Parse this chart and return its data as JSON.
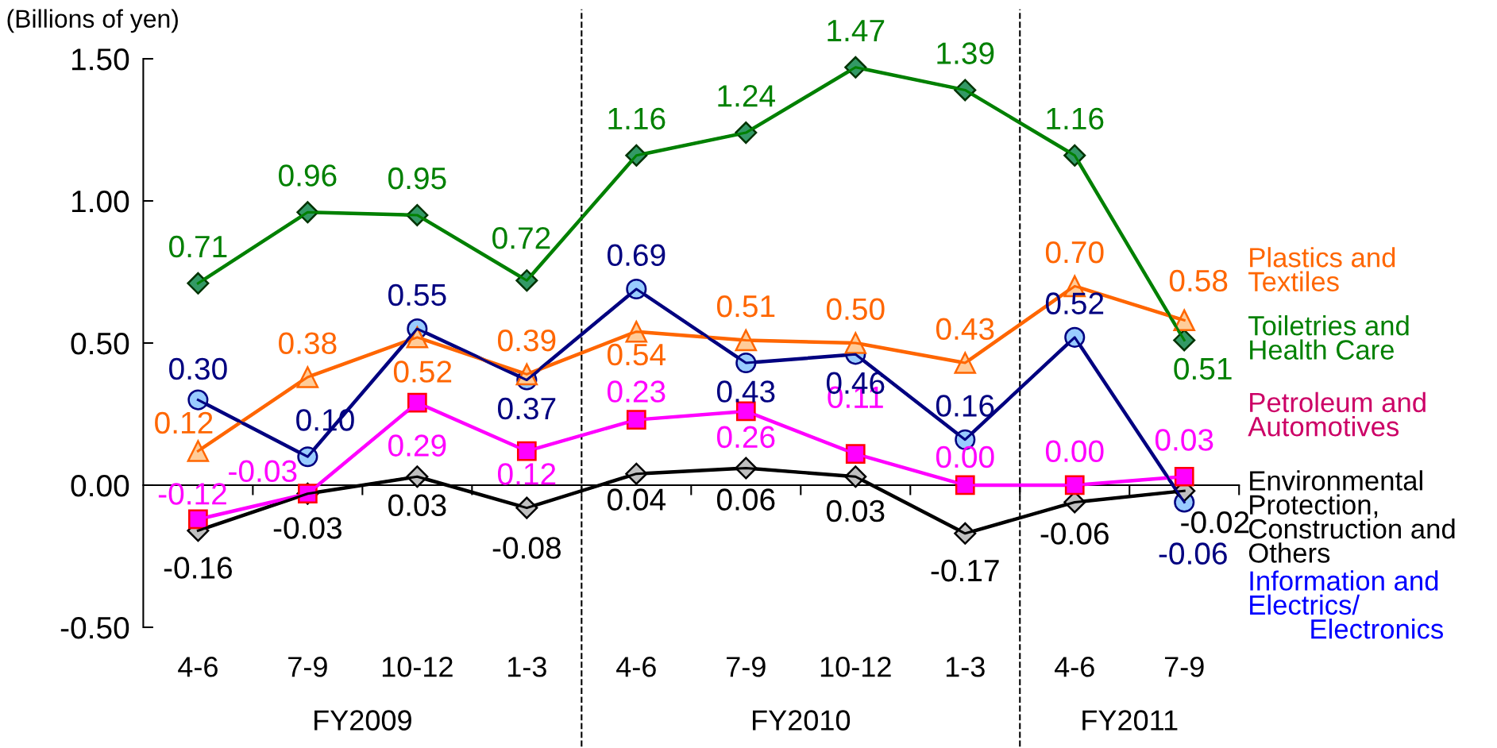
{
  "chart_data": {
    "type": "line",
    "ylabel": "(Billions of yen)",
    "categories": [
      "4-6",
      "7-9",
      "10-12",
      "1-3",
      "4-6",
      "7-9",
      "10-12",
      "1-3",
      "4-6",
      "7-9"
    ],
    "series": [
      {
        "name": "Plastics and\nTextiles",
        "color": "#ff6600",
        "marker": "triangle",
        "values": [
          0.12,
          0.38,
          0.52,
          0.39,
          0.54,
          0.51,
          0.5,
          0.43,
          0.7,
          0.58
        ],
        "value_labels": [
          "0.12",
          "0.38",
          "0.52",
          "0.39",
          "0.54",
          "0.51",
          "0.50",
          "0.43",
          "0.70",
          "0.58"
        ]
      },
      {
        "name": "Toiletries and\nHealth Care",
        "color": "#008000",
        "marker": "diamond",
        "values": [
          0.71,
          0.96,
          0.95,
          0.72,
          1.16,
          1.24,
          1.47,
          1.39,
          1.16,
          0.51
        ],
        "value_labels": [
          "0.71",
          "0.96",
          "0.95",
          "0.72",
          "1.16",
          "1.24",
          "1.47",
          "1.39",
          "1.16",
          "0.51"
        ]
      },
      {
        "name": "Petroleum and\nAutomotives",
        "color": "#ff00ff",
        "marker": "square",
        "values": [
          -0.12,
          -0.03,
          0.29,
          0.12,
          0.23,
          0.26,
          0.11,
          0.0,
          0.0,
          0.03
        ],
        "value_labels": [
          "-0.12",
          "-0.03",
          "0.29",
          "0.12",
          "0.23",
          "0.26",
          "0.11",
          "0.00",
          "0.00",
          "0.03"
        ]
      },
      {
        "name": "Environmental\nProtection,\nConstruction and\nOthers",
        "color": "#000000",
        "marker": "diamond",
        "values": [
          -0.16,
          -0.03,
          0.03,
          -0.08,
          0.04,
          0.06,
          0.03,
          -0.17,
          -0.06,
          -0.02
        ],
        "value_labels": [
          "-0.16",
          "-0.03",
          "0.03",
          "-0.08",
          "0.04",
          "0.06",
          "0.03",
          "-0.17",
          "-0.06",
          "-0.02"
        ]
      },
      {
        "name": "Information and\nElectrics/\n        Electronics",
        "color": "#000080",
        "marker": "circle",
        "values": [
          0.3,
          0.1,
          0.55,
          0.37,
          0.69,
          0.43,
          0.46,
          0.16,
          0.52,
          -0.06
        ],
        "value_labels": [
          "0.30",
          "0.10",
          "0.55",
          "0.37",
          "0.69",
          "0.43",
          "0.46",
          "0.16",
          "0.52",
          "-0.06"
        ]
      }
    ],
    "ylim": [
      -0.5,
      1.5
    ],
    "yticks": [
      {
        "value": -0.5,
        "label": "-0.50"
      },
      {
        "value": 0,
        "label": "0.00"
      },
      {
        "value": 0.5,
        "label": "0.50"
      },
      {
        "value": 1.0,
        "label": "1.00"
      },
      {
        "value": 1.5,
        "label": "1.50"
      }
    ],
    "annotations": [
      "FY2009",
      "FY2010",
      "FY2011"
    ],
    "grid": false,
    "legend": "right"
  }
}
